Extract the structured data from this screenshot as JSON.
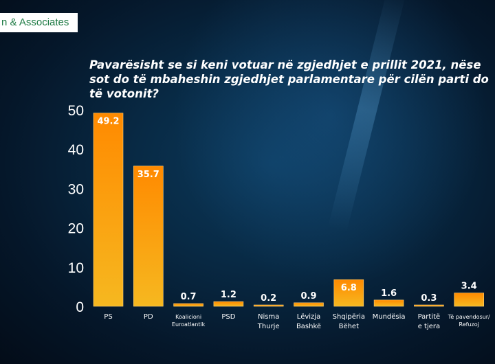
{
  "brand": {
    "text": "n & Associates"
  },
  "chart_data": {
    "type": "bar",
    "title": "Pavarësisht se si keni votuar në zgjedhjet e prillit 2021, nëse sot do të mbaheshin zgjedhjet parlamentare për cilën parti do të votonit?",
    "categories": [
      [
        "PS"
      ],
      [
        "PD"
      ],
      [
        "Koalicioni",
        "Euroatlantik"
      ],
      [
        "PSD"
      ],
      [
        "Nisma",
        "Thurje"
      ],
      [
        "Lëvizja",
        "Bashkë"
      ],
      [
        "Shqipëria",
        "Bëhet"
      ],
      [
        "Mundësia"
      ],
      [
        "Partitë",
        "e tjera"
      ],
      [
        "Të pavendosur/",
        "Refuzoj"
      ]
    ],
    "values": [
      49.2,
      35.7,
      0.7,
      1.2,
      0.2,
      0.9,
      6.8,
      1.6,
      0.3,
      3.4
    ],
    "value_labels": [
      "49.2",
      "35.7",
      "0.7",
      "1.2",
      "0.2",
      "0.9",
      "6.8",
      "1.6",
      "0.3",
      "3.4"
    ],
    "ylim": [
      0,
      50
    ],
    "yticks": [
      0,
      10,
      20,
      30,
      40,
      50
    ],
    "xlabel": "",
    "ylabel": "",
    "grid": false,
    "bar_color_top": "#ff8a00",
    "bar_color_bottom": "#f6b820",
    "bar_edge_color": "#ffd37a"
  }
}
